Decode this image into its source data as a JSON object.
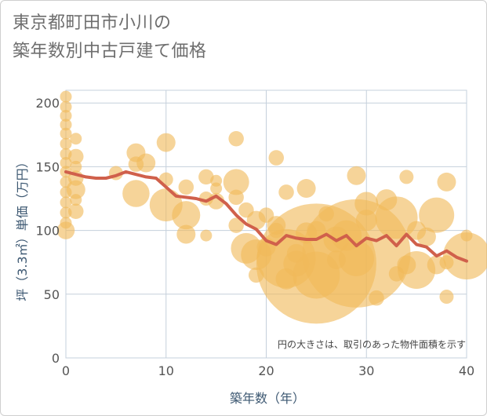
{
  "title_line1": "東京都町田市小川の",
  "title_line2": "築年数別中古戸建て価格",
  "chart_data": {
    "type": "scatter",
    "xlabel": "築年数（年）",
    "ylabel": "坪（3.3㎡）単価（万円）",
    "xlim": [
      0,
      40
    ],
    "ylim": [
      0,
      210
    ],
    "xticks": [
      0,
      10,
      20,
      30,
      40
    ],
    "yticks": [
      0,
      50,
      100,
      150,
      200
    ],
    "grid": true,
    "annotation": "円の大きさは、取引のあった物件面積を示す",
    "colors": {
      "bubble": "#f0b95a",
      "line": "#d0604b",
      "grid": "#c5d0dc"
    },
    "bubbles": [
      {
        "x": 0,
        "y": 205,
        "size": 1
      },
      {
        "x": 0,
        "y": 197,
        "size": 1
      },
      {
        "x": 0,
        "y": 190,
        "size": 1
      },
      {
        "x": 0,
        "y": 183,
        "size": 1
      },
      {
        "x": 0,
        "y": 176,
        "size": 1
      },
      {
        "x": 0,
        "y": 168,
        "size": 1
      },
      {
        "x": 0,
        "y": 160,
        "size": 1
      },
      {
        "x": 0,
        "y": 153,
        "size": 1
      },
      {
        "x": 0,
        "y": 146,
        "size": 1
      },
      {
        "x": 0,
        "y": 138,
        "size": 1
      },
      {
        "x": 0,
        "y": 130,
        "size": 1
      },
      {
        "x": 0,
        "y": 122,
        "size": 1
      },
      {
        "x": 0,
        "y": 114,
        "size": 1
      },
      {
        "x": 0,
        "y": 106,
        "size": 1
      },
      {
        "x": 0,
        "y": 100,
        "size": 1.5
      },
      {
        "x": 1,
        "y": 172,
        "size": 1
      },
      {
        "x": 1,
        "y": 158,
        "size": 1.3
      },
      {
        "x": 1,
        "y": 150,
        "size": 1
      },
      {
        "x": 1,
        "y": 141,
        "size": 1.3
      },
      {
        "x": 1,
        "y": 132,
        "size": 1.6
      },
      {
        "x": 1,
        "y": 124,
        "size": 1
      },
      {
        "x": 1,
        "y": 115,
        "size": 1.3
      },
      {
        "x": 5,
        "y": 145,
        "size": 1.2
      },
      {
        "x": 7,
        "y": 161,
        "size": 1.6
      },
      {
        "x": 7,
        "y": 152,
        "size": 1.3
      },
      {
        "x": 7,
        "y": 129,
        "size": 2.3
      },
      {
        "x": 8,
        "y": 153,
        "size": 1.6
      },
      {
        "x": 10,
        "y": 169,
        "size": 1.6
      },
      {
        "x": 10,
        "y": 140,
        "size": 1.2
      },
      {
        "x": 10,
        "y": 120,
        "size": 2.8
      },
      {
        "x": 12,
        "y": 134,
        "size": 1.3
      },
      {
        "x": 12,
        "y": 112,
        "size": 2.4
      },
      {
        "x": 12,
        "y": 97,
        "size": 1.6
      },
      {
        "x": 14,
        "y": 142,
        "size": 1.3
      },
      {
        "x": 14,
        "y": 125,
        "size": 1.2
      },
      {
        "x": 14,
        "y": 96,
        "size": 1
      },
      {
        "x": 15,
        "y": 139,
        "size": 1
      },
      {
        "x": 15,
        "y": 133,
        "size": 1
      },
      {
        "x": 15,
        "y": 123,
        "size": 1.4
      },
      {
        "x": 17,
        "y": 172,
        "size": 1.3
      },
      {
        "x": 17,
        "y": 138,
        "size": 2.2
      },
      {
        "x": 17,
        "y": 126,
        "size": 1.3
      },
      {
        "x": 17,
        "y": 104,
        "size": 1.3
      },
      {
        "x": 18,
        "y": 116,
        "size": 1.3
      },
      {
        "x": 18,
        "y": 86,
        "size": 2.6
      },
      {
        "x": 19,
        "y": 108,
        "size": 1.6
      },
      {
        "x": 19,
        "y": 81,
        "size": 2.6
      },
      {
        "x": 19,
        "y": 65,
        "size": 1.3
      },
      {
        "x": 20,
        "y": 112,
        "size": 1.3
      },
      {
        "x": 20,
        "y": 87,
        "size": 1.6
      },
      {
        "x": 21,
        "y": 157,
        "size": 1.3
      },
      {
        "x": 21,
        "y": 104,
        "size": 1.6
      },
      {
        "x": 21,
        "y": 100,
        "size": 1.3
      },
      {
        "x": 22,
        "y": 130,
        "size": 1.3
      },
      {
        "x": 22,
        "y": 78,
        "size": 5
      },
      {
        "x": 22,
        "y": 62,
        "size": 1.8
      },
      {
        "x": 23,
        "y": 82,
        "size": 1.6
      },
      {
        "x": 23,
        "y": 74,
        "size": 2.2
      },
      {
        "x": 24,
        "y": 133,
        "size": 1.6
      },
      {
        "x": 24,
        "y": 98,
        "size": 1.8
      },
      {
        "x": 25,
        "y": 100,
        "size": 1.6
      },
      {
        "x": 25,
        "y": 74,
        "size": 10.2
      },
      {
        "x": 25,
        "y": 65,
        "size": 4
      },
      {
        "x": 26,
        "y": 113,
        "size": 1.3
      },
      {
        "x": 27,
        "y": 93,
        "size": 2.2
      },
      {
        "x": 27,
        "y": 77,
        "size": 1.6
      },
      {
        "x": 28,
        "y": 96,
        "size": 2.6
      },
      {
        "x": 29,
        "y": 143,
        "size": 1.6
      },
      {
        "x": 29,
        "y": 82,
        "size": 9.2
      },
      {
        "x": 29,
        "y": 78,
        "size": 3
      },
      {
        "x": 30,
        "y": 121,
        "size": 2
      },
      {
        "x": 30,
        "y": 108,
        "size": 1.8
      },
      {
        "x": 31,
        "y": 47,
        "size": 1.3
      },
      {
        "x": 32,
        "y": 124,
        "size": 1.8
      },
      {
        "x": 33,
        "y": 110,
        "size": 3.6
      },
      {
        "x": 33,
        "y": 66,
        "size": 1.3
      },
      {
        "x": 34,
        "y": 142,
        "size": 1.2
      },
      {
        "x": 34,
        "y": 73,
        "size": 1.6
      },
      {
        "x": 35,
        "y": 100,
        "size": 1.6
      },
      {
        "x": 35,
        "y": 69,
        "size": 3.2
      },
      {
        "x": 36,
        "y": 95,
        "size": 1.6
      },
      {
        "x": 37,
        "y": 112,
        "size": 3
      },
      {
        "x": 37,
        "y": 73,
        "size": 1.6
      },
      {
        "x": 38,
        "y": 138,
        "size": 1.6
      },
      {
        "x": 38,
        "y": 75,
        "size": 1.2
      },
      {
        "x": 38,
        "y": 48,
        "size": 1.2
      },
      {
        "x": 40,
        "y": 96,
        "size": 1
      },
      {
        "x": 40,
        "y": 80,
        "size": 4
      }
    ],
    "trend": {
      "x": [
        0,
        1,
        2,
        3,
        4,
        5,
        6,
        7,
        8,
        9,
        10,
        11,
        12,
        13,
        14,
        15,
        16,
        17,
        18,
        19,
        20,
        21,
        22,
        23,
        24,
        25,
        26,
        27,
        28,
        29,
        30,
        31,
        32,
        33,
        34,
        35,
        36,
        37,
        38,
        39,
        40
      ],
      "y": [
        146,
        144,
        142,
        141,
        141,
        143,
        146,
        144,
        142,
        141,
        134,
        127,
        126,
        125,
        123,
        127,
        121,
        112,
        105,
        101,
        92,
        89,
        96,
        94,
        93,
        93,
        97,
        92,
        96,
        88,
        94,
        92,
        96,
        88,
        97,
        89,
        87,
        80,
        84,
        79,
        76
      ]
    }
  }
}
